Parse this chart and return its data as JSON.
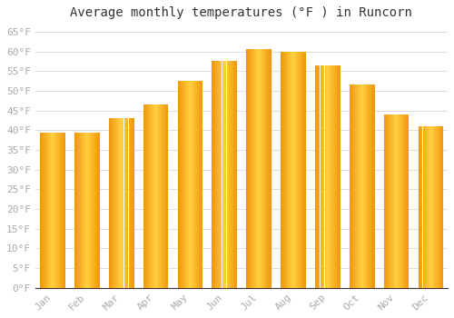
{
  "title": "Average monthly temperatures (°F ) in Runcorn",
  "months": [
    "Jan",
    "Feb",
    "Mar",
    "Apr",
    "May",
    "Jun",
    "Jul",
    "Aug",
    "Sep",
    "Oct",
    "Nov",
    "Dec"
  ],
  "values": [
    39.5,
    39.5,
    43.0,
    46.5,
    52.5,
    57.5,
    60.5,
    60.0,
    56.5,
    51.5,
    44.0,
    41.0
  ],
  "bar_color_center": "#FFD040",
  "bar_color_edge": "#F0960A",
  "background_color": "#FFFFFF",
  "grid_color": "#D8D8D8",
  "yticks": [
    0,
    5,
    10,
    15,
    20,
    25,
    30,
    35,
    40,
    45,
    50,
    55,
    60,
    65
  ],
  "ylim": [
    0,
    67
  ],
  "title_fontsize": 10,
  "tick_fontsize": 8,
  "tick_color": "#AAAAAA",
  "font_family": "monospace",
  "bar_width": 0.72
}
